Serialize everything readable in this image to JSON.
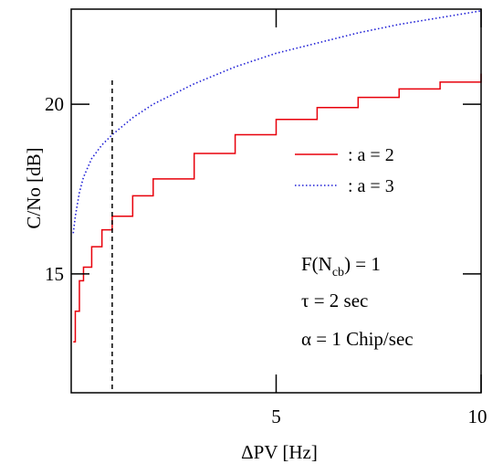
{
  "chart_data": {
    "type": "line",
    "xlabel": "ΔPV [Hz]",
    "ylabel": "C/No [dB]",
    "xlim": [
      0,
      10
    ],
    "ylim": [
      11.5,
      22.8
    ],
    "x_ticks": [
      {
        "value": 5,
        "label": "5"
      },
      {
        "value": 10,
        "label": "10"
      }
    ],
    "y_ticks": [
      {
        "value": 15,
        "label": "15"
      },
      {
        "value": 20,
        "label": "20"
      }
    ],
    "grid": false,
    "legend_position": "right",
    "series": [
      {
        "name": ": a = 2",
        "color": "#e8000b",
        "style": "solid",
        "x": [
          0.05,
          0.1,
          0.2,
          0.3,
          0.5,
          0.75,
          1.0,
          1.5,
          2.0,
          3.0,
          4.0,
          5.0,
          6.0,
          7.0,
          8.0,
          9.0,
          10.0
        ],
        "values": [
          13.0,
          13.9,
          14.8,
          15.2,
          15.8,
          16.3,
          16.7,
          17.3,
          17.8,
          18.55,
          19.1,
          19.55,
          19.9,
          20.2,
          20.45,
          20.65,
          20.9
        ]
      },
      {
        "name": ": a = 3",
        "color": "#1f1fd6",
        "style": "dotted",
        "x": [
          0.05,
          0.1,
          0.2,
          0.3,
          0.5,
          0.75,
          1.0,
          1.5,
          2.0,
          3.0,
          4.0,
          5.0,
          6.0,
          7.0,
          8.0,
          9.0,
          10.0
        ],
        "values": [
          16.2,
          16.7,
          17.4,
          17.85,
          18.4,
          18.8,
          19.1,
          19.6,
          20.0,
          20.6,
          21.1,
          21.5,
          21.8,
          22.1,
          22.35,
          22.55,
          22.75
        ]
      }
    ],
    "vertical_marker": {
      "x": 1.0,
      "y_top": 20.7,
      "style": "dashed",
      "color": "#000000"
    },
    "annotations": {
      "f_label": "F(N",
      "f_sub": "cb",
      "f_value": ") = 1",
      "tau": "τ = 2 sec",
      "alpha": "α  = 1 Chip/sec"
    }
  }
}
